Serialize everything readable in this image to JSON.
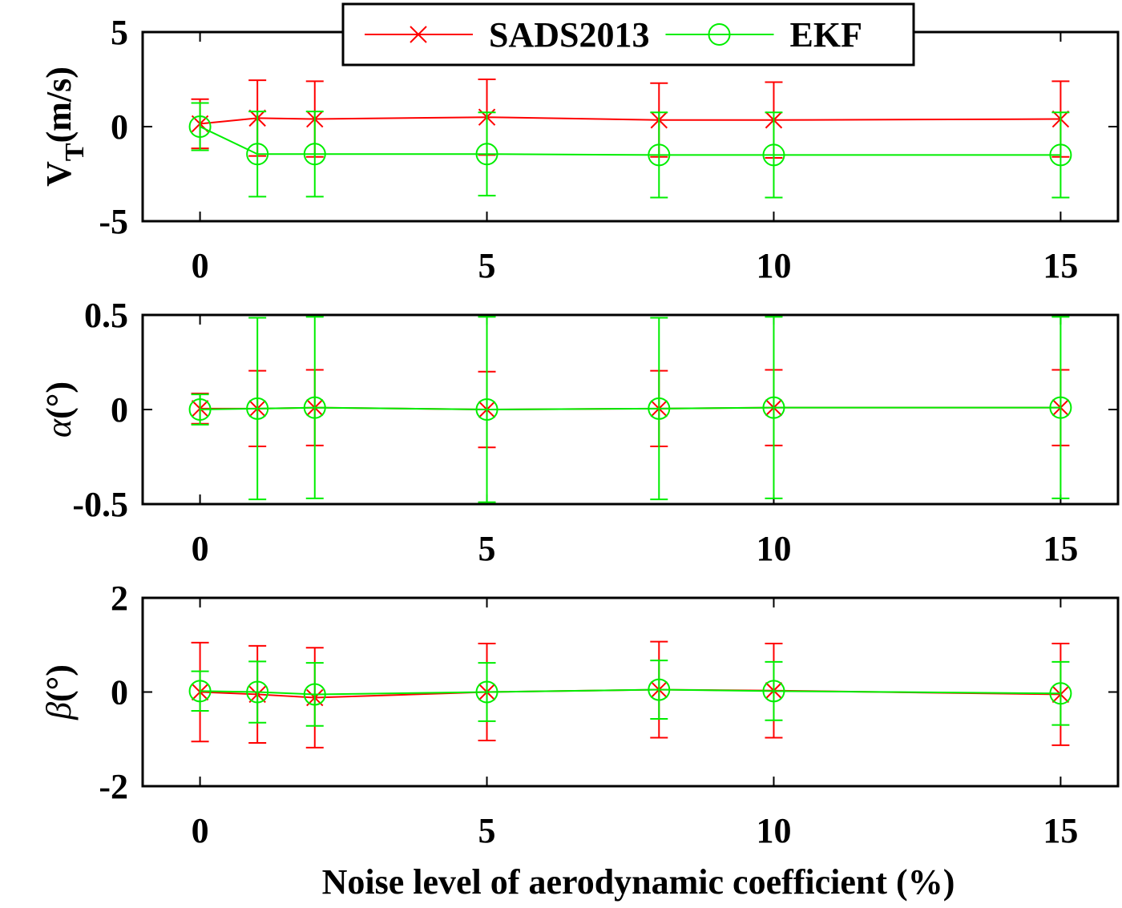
{
  "chart_data": [
    {
      "type": "line",
      "y_label": [
        "V",
        "T",
        "(m/s)"
      ],
      "x": [
        0,
        1,
        2,
        5,
        8,
        10,
        15
      ],
      "xlim": [
        -1,
        16
      ],
      "xticks": [
        0,
        5,
        10,
        15
      ],
      "ylim": [
        -5,
        5
      ],
      "yticks": [
        -5,
        0,
        5
      ],
      "legend": "top",
      "series": [
        {
          "name": "SADS2013",
          "color": "#ff0000",
          "marker": "x",
          "values": [
            0.15,
            0.45,
            0.4,
            0.5,
            0.35,
            0.35,
            0.4
          ],
          "errors": [
            1.3,
            2.0,
            2.0,
            2.0,
            1.95,
            2.0,
            2.0
          ]
        },
        {
          "name": "EKF",
          "color": "#00ee00",
          "marker": "o",
          "values": [
            0,
            -1.45,
            -1.45,
            -1.45,
            -1.5,
            -1.5,
            -1.5
          ],
          "errors": [
            1.25,
            2.25,
            2.25,
            2.2,
            2.25,
            2.25,
            2.25
          ]
        }
      ]
    },
    {
      "type": "line",
      "y_label": [
        "α",
        "",
        "(°)"
      ],
      "x": [
        0,
        1,
        2,
        5,
        8,
        10,
        15
      ],
      "xlim": [
        -1,
        16
      ],
      "xticks": [
        0,
        5,
        10,
        15
      ],
      "ylim": [
        -0.5,
        0.5
      ],
      "yticks": [
        -0.5,
        0,
        0.5
      ],
      "series": [
        {
          "color": "#ff0000",
          "marker": "x",
          "values": [
            0.005,
            0.005,
            0.01,
            0,
            0.005,
            0.01,
            0.01
          ],
          "errors": [
            0.08,
            0.2,
            0.2,
            0.2,
            0.2,
            0.2,
            0.2
          ]
        },
        {
          "color": "#00ee00",
          "marker": "o",
          "values": [
            0,
            0.005,
            0.01,
            0,
            0.005,
            0.01,
            0.01
          ],
          "errors": [
            0.08,
            0.48,
            0.48,
            0.49,
            0.48,
            0.48,
            0.48
          ]
        }
      ]
    },
    {
      "type": "line",
      "y_label": [
        "β",
        "",
        "(°)"
      ],
      "x_label": "Noise level of aerodynamic coefficient (%)",
      "x": [
        0,
        1,
        2,
        5,
        8,
        10,
        15
      ],
      "xlim": [
        -1,
        16
      ],
      "xticks": [
        0,
        5,
        10,
        15
      ],
      "ylim": [
        -2,
        2
      ],
      "yticks": [
        -2,
        0,
        2
      ],
      "series": [
        {
          "color": "#ff0000",
          "marker": "x",
          "values": [
            0,
            -0.05,
            -0.12,
            0,
            0.05,
            0.03,
            -0.05
          ],
          "errors": [
            1.05,
            1.03,
            1.06,
            1.03,
            1.02,
            1.0,
            1.08
          ]
        },
        {
          "color": "#00ee00",
          "marker": "o",
          "values": [
            0.02,
            0,
            -0.05,
            0,
            0.05,
            0.02,
            -0.03
          ],
          "errors": [
            0.42,
            0.65,
            0.67,
            0.62,
            0.62,
            0.62,
            0.67
          ]
        }
      ]
    }
  ]
}
